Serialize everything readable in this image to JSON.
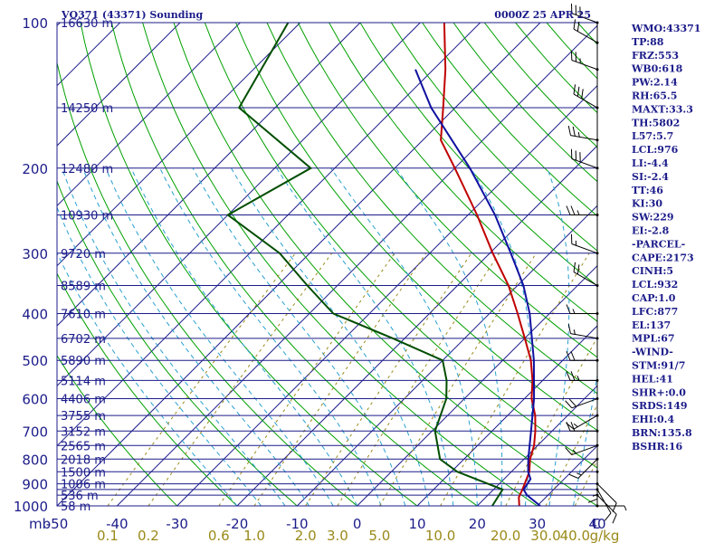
{
  "header": {
    "station": "VQ371 (43371) Sounding",
    "time": "0000Z 25 APR 25"
  },
  "axes": {
    "pressure_unit": "mb",
    "mixing_ratio_unit": "g/kg"
  },
  "chart_data": {
    "type": "line",
    "title": "VQ371 (43371) Sounding",
    "xlabel": "",
    "ylabel": "mb",
    "xlim": [
      -50,
      40
    ],
    "ylim": [
      1000,
      100
    ],
    "y_scale": "log",
    "x_ticks": [
      "-50",
      "-40",
      "-30",
      "-20",
      "-10",
      "0",
      "10",
      "20",
      "30",
      "40"
    ],
    "x_tick_values": [
      -50,
      -40,
      -30,
      -20,
      -10,
      0,
      10,
      20,
      30,
      40
    ],
    "y_ticks": [
      "100",
      "200",
      "300",
      "400",
      "500",
      "600",
      "700",
      "800",
      "900",
      "1000"
    ],
    "y_tick_values": [
      100,
      200,
      300,
      400,
      500,
      600,
      700,
      800,
      900,
      1000
    ],
    "extra_isobars": [
      150,
      250,
      350,
      450,
      550,
      650,
      750,
      850,
      925,
      950
    ],
    "height_labels": [
      {
        "p": 100,
        "text": "16630 m"
      },
      {
        "p": 150,
        "text": "14250 m"
      },
      {
        "p": 200,
        "text": "12480 m"
      },
      {
        "p": 250,
        "text": "10930 m"
      },
      {
        "p": 300,
        "text": "9720 m"
      },
      {
        "p": 350,
        "text": "8589 m"
      },
      {
        "p": 400,
        "text": "7610 m"
      },
      {
        "p": 450,
        "text": "6702 m"
      },
      {
        "p": 500,
        "text": "5890 m"
      },
      {
        "p": 550,
        "text": "5114 m"
      },
      {
        "p": 600,
        "text": "4406 m"
      },
      {
        "p": 650,
        "text": "3755 m"
      },
      {
        "p": 700,
        "text": "3152 m"
      },
      {
        "p": 750,
        "text": "2565 m"
      },
      {
        "p": 800,
        "text": "2018 m"
      },
      {
        "p": 850,
        "text": "1500 m"
      },
      {
        "p": 900,
        "text": "1006 m"
      },
      {
        "p": 950,
        "text": "536 m"
      },
      {
        "p": 1000,
        "text": "58 m"
      }
    ],
    "mixing_ratio_labels": [
      "0.1",
      "0.2",
      "0.6",
      "1.0",
      "2.0",
      "3.0",
      "5.0",
      "10.0",
      "20.0",
      "30.0",
      "40.0",
      "g/kg"
    ],
    "mixing_ratio_label_values": [
      0.1,
      0.2,
      0.6,
      1.0,
      2.0,
      3.0,
      5.0,
      10.0,
      20.0,
      30.0,
      40.0
    ],
    "series": [
      {
        "name": "Temperature",
        "color": "#c00000",
        "points": [
          [
            1000,
            27
          ],
          [
            960,
            25.5
          ],
          [
            925,
            24.8
          ],
          [
            850,
            23
          ],
          [
            800,
            21
          ],
          [
            750,
            19.4
          ],
          [
            700,
            17.2
          ],
          [
            650,
            14.6
          ],
          [
            600,
            11.2
          ],
          [
            550,
            8.3
          ],
          [
            500,
            4.7
          ],
          [
            450,
            0
          ],
          [
            400,
            -5.3
          ],
          [
            350,
            -11.5
          ],
          [
            300,
            -19.5
          ],
          [
            250,
            -28.5
          ],
          [
            200,
            -40
          ],
          [
            175,
            -47
          ],
          [
            150,
            -52
          ],
          [
            125,
            -58
          ],
          [
            100,
            -66
          ]
        ]
      },
      {
        "name": "Dewpoint",
        "color": "#004d00",
        "points": [
          [
            1000,
            22.5
          ],
          [
            925,
            21.5
          ],
          [
            850,
            11
          ],
          [
            800,
            6
          ],
          [
            700,
            0.5
          ],
          [
            600,
            -3
          ],
          [
            550,
            -6
          ],
          [
            500,
            -10
          ],
          [
            450,
            -22
          ],
          [
            400,
            -36
          ],
          [
            350,
            -45
          ],
          [
            300,
            -55
          ],
          [
            250,
            -70
          ],
          [
            200,
            -64
          ],
          [
            150,
            -86
          ],
          [
            100,
            -92
          ]
        ]
      },
      {
        "name": "Parcel",
        "color": "#1010a0",
        "points": [
          [
            1000,
            30.5
          ],
          [
            950,
            26.5
          ],
          [
            925,
            25
          ],
          [
            880,
            24.4
          ],
          [
            850,
            22.8
          ],
          [
            800,
            20.7
          ],
          [
            700,
            16.5
          ],
          [
            600,
            11.6
          ],
          [
            500,
            5.2
          ],
          [
            400,
            -3.3
          ],
          [
            350,
            -9
          ],
          [
            300,
            -16.5
          ],
          [
            250,
            -25.5
          ],
          [
            200,
            -37.5
          ],
          [
            150,
            -54
          ],
          [
            125,
            -63
          ]
        ]
      }
    ]
  },
  "wind_barbs": [
    {
      "p": 1000,
      "dir": 90,
      "spd": 5
    },
    {
      "p": 950,
      "dir": 135,
      "spd": 10
    },
    {
      "p": 925,
      "dir": 150,
      "spd": 10
    },
    {
      "p": 900,
      "dir": 135,
      "spd": 10
    },
    {
      "p": 850,
      "dir": 180,
      "spd": 15
    },
    {
      "p": 800,
      "dir": 225,
      "spd": 15
    },
    {
      "p": 750,
      "dir": 250,
      "spd": 15
    },
    {
      "p": 700,
      "dir": 270,
      "spd": 20
    },
    {
      "p": 650,
      "dir": 240,
      "spd": 15
    },
    {
      "p": 600,
      "dir": 250,
      "spd": 20
    },
    {
      "p": 550,
      "dir": 270,
      "spd": 25
    },
    {
      "p": 500,
      "dir": 270,
      "spd": 20
    },
    {
      "p": 450,
      "dir": 280,
      "spd": 15
    },
    {
      "p": 400,
      "dir": 270,
      "spd": 15
    },
    {
      "p": 350,
      "dir": 300,
      "spd": 20
    },
    {
      "p": 300,
      "dir": 290,
      "spd": 15
    },
    {
      "p": 250,
      "dir": 270,
      "spd": 25
    },
    {
      "p": 200,
      "dir": 290,
      "spd": 30
    },
    {
      "p": 175,
      "dir": 280,
      "spd": 25
    },
    {
      "p": 150,
      "dir": 300,
      "spd": 30
    },
    {
      "p": 125,
      "dir": 290,
      "spd": 25
    },
    {
      "p": 110,
      "dir": 300,
      "spd": 20
    },
    {
      "p": 100,
      "dir": 290,
      "spd": 30
    }
  ],
  "indices": [
    "WMO:43371",
    "TP:88",
    "FRZ:553",
    "WB0:618",
    "PW:2.14",
    "RH:65.5",
    "MAXT:33.3",
    "TH:5802",
    "L57:5.7",
    "LCL:976",
    "LI:-4.4",
    "SI:-2.4",
    "TT:46",
    "KI:30",
    "SW:229",
    "EI:-2.8",
    "-PARCEL-",
    "CAPE:2173",
    "CINH:5",
    "LCL:932",
    "CAP:1.0",
    "LFC:877",
    "EL:137",
    "MPL:67",
    "-WIND-",
    "STM:91/7",
    "HEL:41",
    "SHR+:0.0",
    "SRDS:149",
    "EHI:0.4",
    "BRN:135.8",
    "BSHR:16"
  ],
  "colors": {
    "frame": "#1c1c8a",
    "isobar": "#1c1c8a",
    "isotherm": "#1c1c8a",
    "dry_adiabat": "#00a000",
    "moist_adiabat": "#2aa0d0",
    "mixing_ratio": "#9a8a1a",
    "wind": "#000000"
  }
}
